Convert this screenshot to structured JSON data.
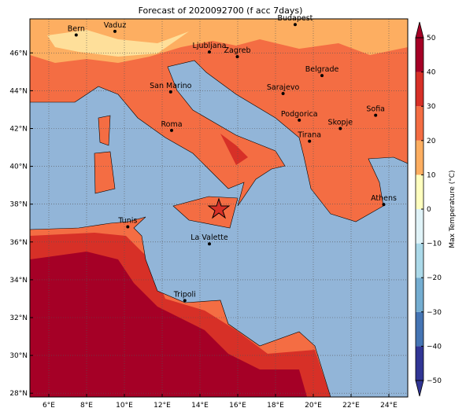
{
  "title": "Forecast of 2020092700 (f acc 7days)",
  "map": {
    "xlim": [
      5,
      25
    ],
    "ylim": [
      27.8,
      47.8
    ],
    "grid": true,
    "xticks": [
      {
        "value": 6,
        "label": "6°E"
      },
      {
        "value": 8,
        "label": "8°E"
      },
      {
        "value": 10,
        "label": "10°E"
      },
      {
        "value": 12,
        "label": "12°E"
      },
      {
        "value": 14,
        "label": "14°E"
      },
      {
        "value": 16,
        "label": "16°E"
      },
      {
        "value": 18,
        "label": "18°E"
      },
      {
        "value": 20,
        "label": "20°E"
      },
      {
        "value": 22,
        "label": "22°E"
      },
      {
        "value": 24,
        "label": "24°E"
      }
    ],
    "yticks": [
      {
        "value": 28,
        "label": "28°N"
      },
      {
        "value": 30,
        "label": "30°N"
      },
      {
        "value": 32,
        "label": "32°N"
      },
      {
        "value": 34,
        "label": "34°N"
      },
      {
        "value": 36,
        "label": "36°N"
      },
      {
        "value": 38,
        "label": "38°N"
      },
      {
        "value": 40,
        "label": "40°N"
      },
      {
        "value": 42,
        "label": "42°N"
      },
      {
        "value": 44,
        "label": "44°N"
      },
      {
        "value": 46,
        "label": "46°N"
      }
    ]
  },
  "cities": [
    {
      "name": "Bern",
      "lon": 7.45,
      "lat": 46.95
    },
    {
      "name": "Vaduz",
      "lon": 9.5,
      "lat": 47.14
    },
    {
      "name": "Budapest",
      "lon": 19.04,
      "lat": 47.5
    },
    {
      "name": "Ljubljana",
      "lon": 14.5,
      "lat": 46.05
    },
    {
      "name": "Zagreb",
      "lon": 15.98,
      "lat": 45.8
    },
    {
      "name": "Belgrade",
      "lon": 20.46,
      "lat": 44.8
    },
    {
      "name": "San Marino",
      "lon": 12.45,
      "lat": 43.94
    },
    {
      "name": "Sarajevo",
      "lon": 18.4,
      "lat": 43.85
    },
    {
      "name": "Sofia",
      "lon": 23.3,
      "lat": 42.7
    },
    {
      "name": "Podgorica",
      "lon": 19.26,
      "lat": 42.44
    },
    {
      "name": "Roma",
      "lon": 12.5,
      "lat": 41.9
    },
    {
      "name": "Skopje",
      "lon": 21.43,
      "lat": 42.0
    },
    {
      "name": "Tirana",
      "lon": 19.8,
      "lat": 41.33
    },
    {
      "name": "Athens",
      "lon": 23.73,
      "lat": 37.98
    },
    {
      "name": "Tunis",
      "lon": 10.18,
      "lat": 36.8
    },
    {
      "name": "La Valette",
      "lon": 14.5,
      "lat": 35.9
    },
    {
      "name": "Tripoli",
      "lon": 13.2,
      "lat": 32.9
    }
  ],
  "colorbar": {
    "label": "Max Temperature (°C)",
    "lim": [
      -50,
      50
    ],
    "ticks": [
      {
        "value": -50,
        "label": "−50"
      },
      {
        "value": -40,
        "label": "−40"
      },
      {
        "value": -30,
        "label": "−30"
      },
      {
        "value": -20,
        "label": "−20"
      },
      {
        "value": -10,
        "label": "−10"
      },
      0,
      10,
      20,
      30,
      40,
      50
    ],
    "colors": [
      "#313695",
      "#4575b4",
      "#74add1",
      "#abd9e9",
      "#e0f3f8",
      "#ffffbf",
      "#fdae61",
      "#f46d43",
      "#d73027",
      "#a50026"
    ]
  }
}
